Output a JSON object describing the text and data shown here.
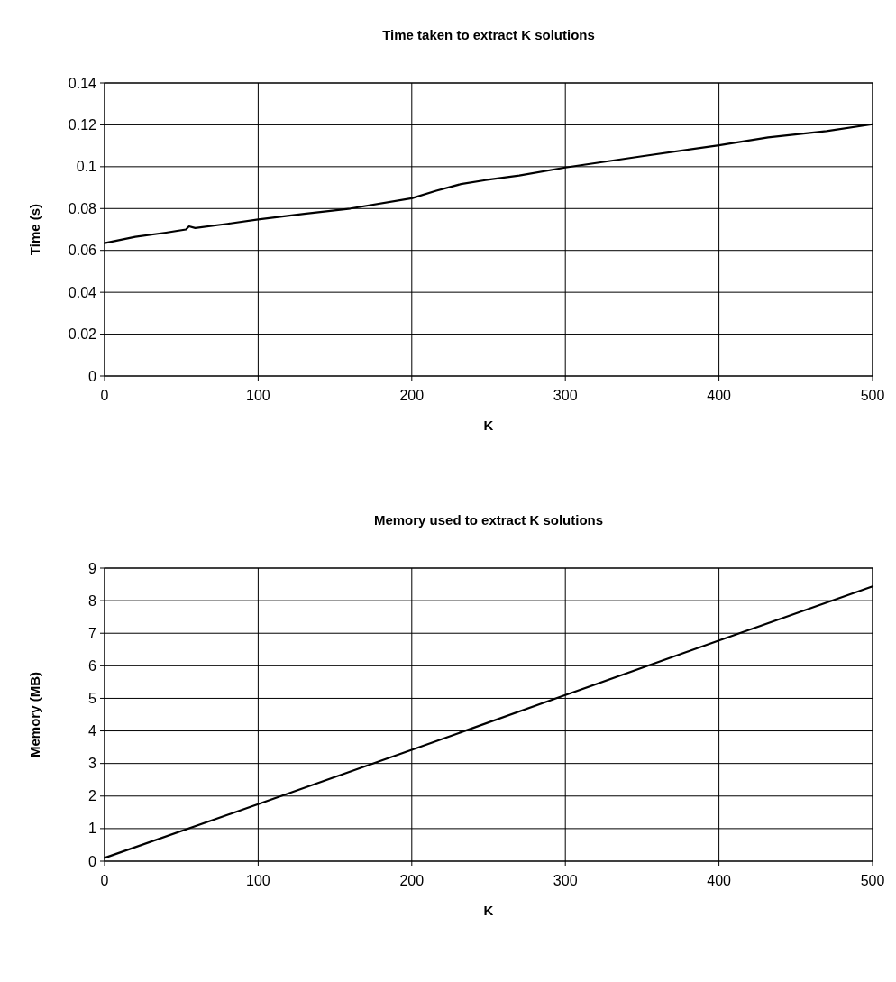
{
  "chart_data": [
    {
      "type": "line",
      "title": "Time taken to extract K solutions",
      "xlabel": "K",
      "ylabel": "Time (s)",
      "xlim": [
        0,
        500
      ],
      "xticks": [
        0,
        100,
        200,
        300,
        400,
        500
      ],
      "ylim": [
        0,
        0.14
      ],
      "yticks": [
        0,
        0.02,
        0.04,
        0.06,
        0.08,
        0.1,
        0.12,
        0.14
      ],
      "grid": true,
      "marker": "none",
      "line_style": "solid",
      "series": [
        {
          "color": "#000000",
          "x": [
            0,
            20,
            40,
            53,
            55,
            59,
            80,
            100,
            130,
            160,
            200,
            216,
            232,
            248,
            270,
            300,
            350,
            400,
            432,
            470,
            500
          ],
          "values": [
            0.0635,
            0.0665,
            0.0685,
            0.07,
            0.0715,
            0.0707,
            0.0727,
            0.0748,
            0.0775,
            0.08,
            0.0849,
            0.0885,
            0.0917,
            0.0936,
            0.0958,
            0.0996,
            0.105,
            0.1102,
            0.114,
            0.117,
            0.1203
          ]
        }
      ]
    },
    {
      "type": "line",
      "title": "Memory used to extract K solutions",
      "xlabel": "K",
      "ylabel": "Memory (MB)",
      "xlim": [
        0,
        500
      ],
      "xticks": [
        0,
        100,
        200,
        300,
        400,
        500
      ],
      "ylim": [
        0,
        9
      ],
      "yticks": [
        0,
        1,
        2,
        3,
        4,
        5,
        6,
        7,
        8,
        9
      ],
      "grid": true,
      "marker": "none",
      "line_style": "solid",
      "series": [
        {
          "color": "#000000",
          "x": [
            0,
            100,
            200,
            300,
            400,
            500
          ],
          "values": [
            0.1,
            1.75,
            3.42,
            5.1,
            6.78,
            8.44
          ]
        }
      ]
    }
  ]
}
